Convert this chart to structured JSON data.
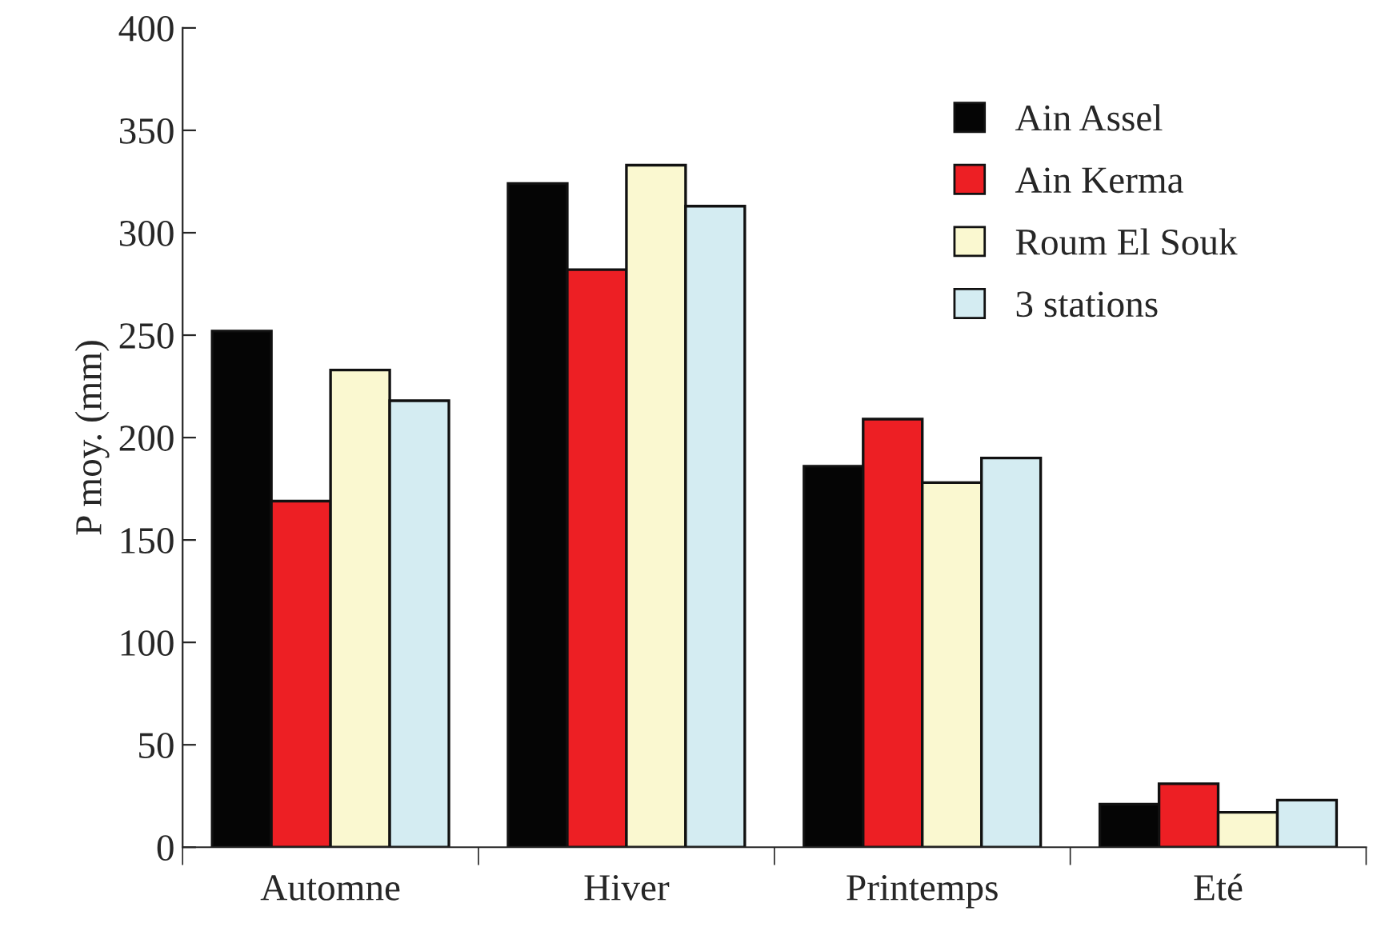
{
  "chart_data": {
    "type": "bar",
    "ylabel": "P moy. (mm)",
    "categories": [
      "Automne",
      "Hiver",
      "Printemps",
      "Eté"
    ],
    "series": [
      {
        "name": "Ain Assel",
        "color": "#050505",
        "values": [
          252,
          324,
          186,
          21
        ]
      },
      {
        "name": "Ain Kerma",
        "color": "#ed1f24",
        "values": [
          169,
          282,
          209,
          31
        ]
      },
      {
        "name": "Roum El Souk",
        "color": "#faf8d0",
        "values": [
          233,
          333,
          178,
          17
        ]
      },
      {
        "name": "3 stations",
        "color": "#d4ecf2",
        "values": [
          218,
          313,
          190,
          23
        ]
      }
    ],
    "ylim": [
      0,
      400
    ],
    "yticks": [
      0,
      50,
      100,
      150,
      200,
      250,
      300,
      350,
      400
    ],
    "grid": false,
    "legend": "top right"
  }
}
